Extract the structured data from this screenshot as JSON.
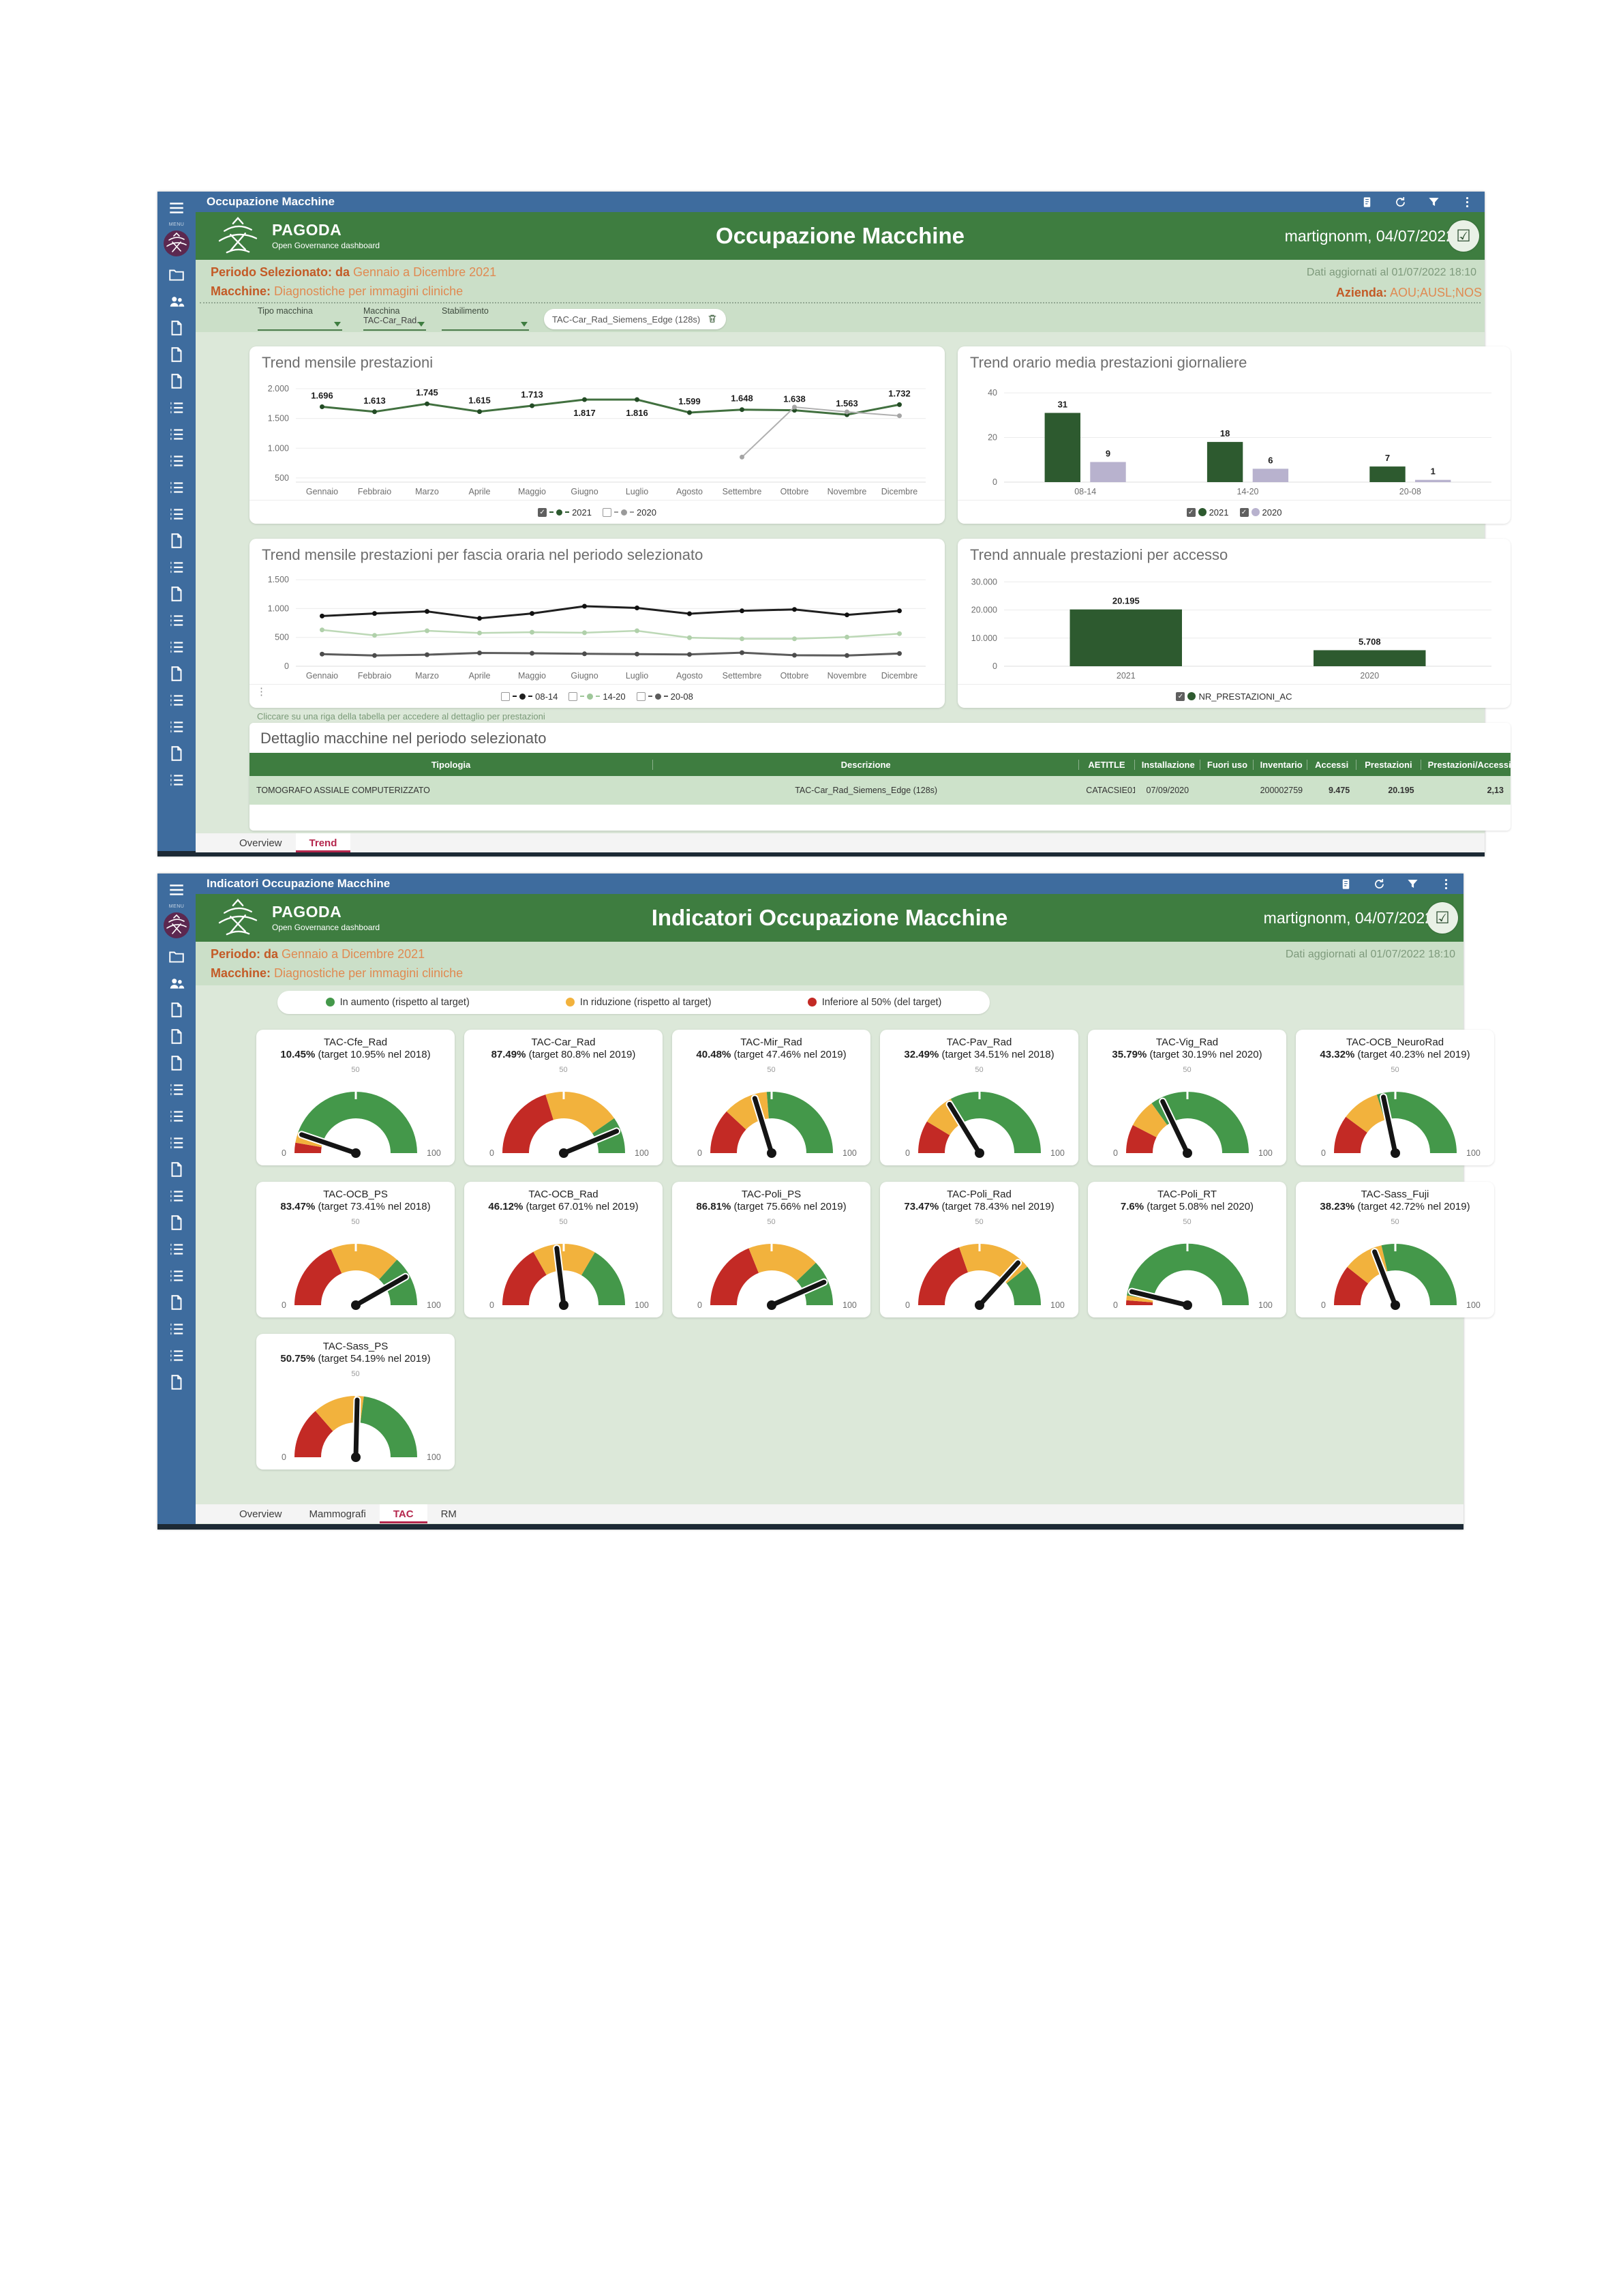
{
  "shared": {
    "brand": "PAGODA",
    "brand_sub": "Open Governance dashboard",
    "user": "martignonm, 04/07/2022",
    "updated": "Dati aggiornati al 01/07/2022 18:10",
    "avatar_icon": "☑",
    "menu_label": "MENU"
  },
  "dash1": {
    "window_title": "Occupazione Macchine",
    "header_title": "Occupazione Macchine",
    "period_label": "Periodo Selezionato: da",
    "period_value": "Gennaio a Dicembre 2021",
    "machine_label": "Macchine:",
    "machine_value": "Diagnostiche per immagini cliniche",
    "azienda_label": "Azienda:",
    "azienda_value": "AOU;AUSL;NOS",
    "filters": {
      "tipo_label": "Tipo macchina",
      "macchina_label": "Macchina",
      "stabilimento_label": "Stabilimento",
      "macchina_value": "TAC-Car_Rad...",
      "chip_label": "TAC-Car_Rad_Siemens_Edge (128s)"
    },
    "note": "Cliccare su una riga della tabella per accedere al dettaglio per prestazioni",
    "table": {
      "title": "Dettaglio macchine nel periodo selezionato",
      "columns": [
        "Tipologia",
        "Descrizione",
        "AETITLE",
        "Installazione",
        "Fuori uso",
        "Inventario",
        "Accessi",
        "Prestazioni",
        "Prestazioni/Accessi"
      ],
      "rows": [
        [
          "TOMOGRAFO ASSIALE COMPUTERIZZATO",
          "TAC-Car_Rad_Siemens_Edge (128s)",
          "CATACSIE01",
          "07/09/2020",
          "",
          "200002759",
          "9.475",
          "20.195",
          "2,13"
        ]
      ]
    },
    "tabs": [
      {
        "label": "Overview",
        "active": false
      },
      {
        "label": "Trend",
        "active": true
      }
    ]
  },
  "dash2": {
    "window_title": "Indicatori Occupazione Macchine",
    "header_title": "Indicatori Occupazione Macchine",
    "period_label": "Periodo: da",
    "period_value": "Gennaio a Dicembre 2021",
    "machine_label": "Macchine:",
    "machine_value": "Diagnostiche per immagini cliniche",
    "legend": [
      {
        "label": "In aumento (rispetto al target)",
        "color": "#44984a"
      },
      {
        "label": "In riduzione (rispetto al target)",
        "color": "#f2b23d"
      },
      {
        "label": "Inferiore al 50% (del target)",
        "color": "#c32a25"
      }
    ],
    "tabs": [
      {
        "label": "Overview",
        "active": false
      },
      {
        "label": "Mammografi",
        "active": false
      },
      {
        "label": "TAC",
        "active": true
      },
      {
        "label": "RM",
        "active": false
      }
    ]
  },
  "sidebar": {
    "dash1_icons": [
      "menu",
      "logo",
      "folder",
      "users",
      "file",
      "file",
      "file",
      "list",
      "list",
      "list",
      "list",
      "list",
      "file",
      "list",
      "file",
      "list",
      "list",
      "file",
      "list",
      "list",
      "file",
      "list"
    ],
    "dash2_icons": [
      "menu",
      "logo",
      "folder",
      "users",
      "file",
      "file",
      "file",
      "list",
      "list",
      "list",
      "file",
      "list",
      "file",
      "list",
      "list",
      "file",
      "list",
      "list",
      "file"
    ],
    "titlebar_icons": [
      "report",
      "refresh",
      "filter",
      "kebab"
    ]
  },
  "chart_data": [
    {
      "type": "line",
      "el": "c1",
      "legend_el": "c1l",
      "title": "Trend mensile prestazioni",
      "categories": [
        "Gennaio",
        "Febbraio",
        "Marzo",
        "Aprile",
        "Maggio",
        "Giugno",
        "Luglio",
        "Agosto",
        "Settembre",
        "Ottobre",
        "Novembre",
        "Dicembre"
      ],
      "ymin": 430,
      "ymax": 2080,
      "yticks": [
        {
          "v": 500,
          "t": "500"
        },
        {
          "v": 1000,
          "t": "1.000"
        },
        {
          "v": 1500,
          "t": "1.500"
        },
        {
          "v": 2000,
          "t": "2.000"
        }
      ],
      "series": [
        {
          "name": "2021",
          "color": "#41703f",
          "dot": "#234b25",
          "width": 3,
          "values": [
            1696,
            1613,
            1745,
            1615,
            1713,
            1817,
            1816,
            1599,
            1648,
            1638,
            1563,
            1732
          ],
          "labels": [
            "1.696",
            "1.613",
            "1.745",
            "1.615",
            "1.713",
            "1.817",
            "1.816",
            "1.599",
            "1.648",
            "1.638",
            "1.563",
            "1.732"
          ],
          "below": [
            5,
            6
          ]
        },
        {
          "name": "2020",
          "color": "#b0b0b0",
          "dot": "#a5a5a5",
          "width": 2,
          "values": [
            null,
            null,
            null,
            null,
            null,
            null,
            null,
            null,
            850,
            1690,
            1610,
            1545
          ]
        }
      ],
      "legend": [
        {
          "label": "2021",
          "checked": true,
          "color": "#2d5a2f",
          "dash": true
        },
        {
          "label": "2020",
          "checked": false,
          "color": "#9a9a9a",
          "dash": true
        }
      ]
    },
    {
      "type": "bar",
      "el": "c2",
      "legend_el": "c2l",
      "title": "Trend orario media prestazioni giornaliere",
      "categories": [
        "08-14",
        "14-20",
        "20-08"
      ],
      "ymin": 0,
      "ymax": 44,
      "barFrac": 0.22,
      "gapFrac": 0.06,
      "yticks": [
        {
          "v": 0,
          "t": "0"
        },
        {
          "v": 20,
          "t": "20"
        },
        {
          "v": 40,
          "t": "40"
        }
      ],
      "series": [
        {
          "name": "2021",
          "color": "#2d5a2f",
          "values": [
            31,
            18,
            7
          ],
          "labels": [
            "31",
            "18",
            "7"
          ]
        },
        {
          "name": "2020",
          "color": "#b8b2ce",
          "values": [
            9,
            6,
            1
          ],
          "labels": [
            "9",
            "6",
            "1"
          ]
        }
      ],
      "legend": [
        {
          "label": "2021",
          "checked": true,
          "color": "#2d5a2f",
          "big": true
        },
        {
          "label": "2020",
          "checked": true,
          "color": "#b8b2ce",
          "big": true
        }
      ]
    },
    {
      "type": "line",
      "el": "c3",
      "legend_el": "c3l",
      "title": "Trend mensile prestazioni per fascia oraria nel periodo selezionato",
      "categories": [
        "Gennaio",
        "Febbraio",
        "Marzo",
        "Aprile",
        "Maggio",
        "Giugno",
        "Luglio",
        "Agosto",
        "Settembre",
        "Ottobre",
        "Novembre",
        "Dicembre"
      ],
      "ymin": 0,
      "ymax": 1560,
      "yticks": [
        {
          "v": 0,
          "t": "0"
        },
        {
          "v": 500,
          "t": "500"
        },
        {
          "v": 1000,
          "t": "1.000"
        },
        {
          "v": 1500,
          "t": "1.500"
        }
      ],
      "series": [
        {
          "name": "08-14",
          "color": "#1f1f1f",
          "dot": "#111",
          "width": 3,
          "values": [
            870,
            915,
            950,
            830,
            915,
            1040,
            1010,
            910,
            960,
            985,
            890,
            960
          ]
        },
        {
          "name": "14-20",
          "color": "#bcd8b6",
          "dot": "#b0d0aa",
          "width": 2.5,
          "values": [
            630,
            535,
            615,
            575,
            590,
            580,
            615,
            495,
            475,
            475,
            505,
            565
          ]
        },
        {
          "name": "20-08",
          "color": "#5c5c5c",
          "dot": "#4c4c4c",
          "width": 3,
          "values": [
            210,
            185,
            200,
            230,
            225,
            215,
            210,
            205,
            235,
            190,
            185,
            220
          ]
        }
      ],
      "legend": [
        {
          "label": "08-14",
          "checked": false,
          "color": "#1f1f1f",
          "dash": true
        },
        {
          "label": "14-20",
          "checked": false,
          "color": "#9fc79a",
          "dash": true
        },
        {
          "label": "20-08",
          "checked": false,
          "color": "#5c5c5c",
          "dash": true
        }
      ],
      "kebab": true
    },
    {
      "type": "bar",
      "el": "c4",
      "legend_el": "c4l",
      "title": "Trend annuale prestazioni per accesso",
      "categories": [
        "2021",
        "2020"
      ],
      "ymin": 0,
      "ymax": 32000,
      "barFrac": 0.46,
      "gapFrac": 0,
      "yticks": [
        {
          "v": 0,
          "t": "0"
        },
        {
          "v": 10000,
          "t": "10.000"
        },
        {
          "v": 20000,
          "t": "20.000"
        },
        {
          "v": 30000,
          "t": "30.000"
        }
      ],
      "series": [
        {
          "name": "NR_PRESTAZIONI_AC",
          "color": "#2d5a2f",
          "values": [
            20195,
            5708
          ],
          "labels": [
            "20.195",
            "5.708"
          ]
        }
      ],
      "legend": [
        {
          "label": "NR_PRESTAZIONI_AC",
          "checked": true,
          "color": "#2d5a2f",
          "big": true
        }
      ]
    },
    {
      "type": "gauge-grid",
      "el": "gauges",
      "scale_top": "50",
      "scale_left": "0",
      "scale_right": "100",
      "colors": {
        "low": "#c32a25",
        "mid": "#f2b23d",
        "high": "#44984a"
      },
      "items": [
        {
          "name": "TAC-Cfe_Rad",
          "value": 10.45,
          "value_label": "10.45%",
          "target": 10.95,
          "target_label": "(target 10.95% nel 2018)"
        },
        {
          "name": "TAC-Car_Rad",
          "value": 87.49,
          "value_label": "87.49%",
          "target": 80.8,
          "target_label": "(target 80.8% nel 2019)"
        },
        {
          "name": "TAC-Mir_Rad",
          "value": 40.48,
          "value_label": "40.48%",
          "target": 47.46,
          "target_label": "(target 47.46% nel 2019)"
        },
        {
          "name": "TAC-Pav_Rad",
          "value": 32.49,
          "value_label": "32.49%",
          "target": 34.51,
          "target_label": "(target 34.51% nel 2018)"
        },
        {
          "name": "TAC-Vig_Rad",
          "value": 35.79,
          "value_label": "35.79%",
          "target": 30.19,
          "target_label": "(target 30.19% nel 2020)"
        },
        {
          "name": "TAC-OCB_NeuroRad",
          "value": 43.32,
          "value_label": "43.32%",
          "target": 40.23,
          "target_label": "(target 40.23% nel 2019)"
        },
        {
          "name": "TAC-OCB_PS",
          "value": 83.47,
          "value_label": "83.47%",
          "target": 73.41,
          "target_label": "(target 73.41% nel 2018)"
        },
        {
          "name": "TAC-OCB_Rad",
          "value": 46.12,
          "value_label": "46.12%",
          "target": 67.01,
          "target_label": "(target 67.01% nel 2019)"
        },
        {
          "name": "TAC-Poli_PS",
          "value": 86.81,
          "value_label": "86.81%",
          "target": 75.66,
          "target_label": "(target 75.66% nel 2019)"
        },
        {
          "name": "TAC-Poli_Rad",
          "value": 73.47,
          "value_label": "73.47%",
          "target": 78.43,
          "target_label": "(target 78.43% nel 2019)"
        },
        {
          "name": "TAC-Poli_RT",
          "value": 7.6,
          "value_label": "7.6%",
          "target": 5.08,
          "target_label": "(target 5.08% nel 2020)"
        },
        {
          "name": "TAC-Sass_Fuji",
          "value": 38.23,
          "value_label": "38.23%",
          "target": 42.72,
          "target_label": "(target 42.72% nel 2019)"
        },
        {
          "name": "TAC-Sass_PS",
          "value": 50.75,
          "value_label": "50.75%",
          "target": 54.19,
          "target_label": "(target 54.19% nel 2019)"
        }
      ]
    }
  ]
}
